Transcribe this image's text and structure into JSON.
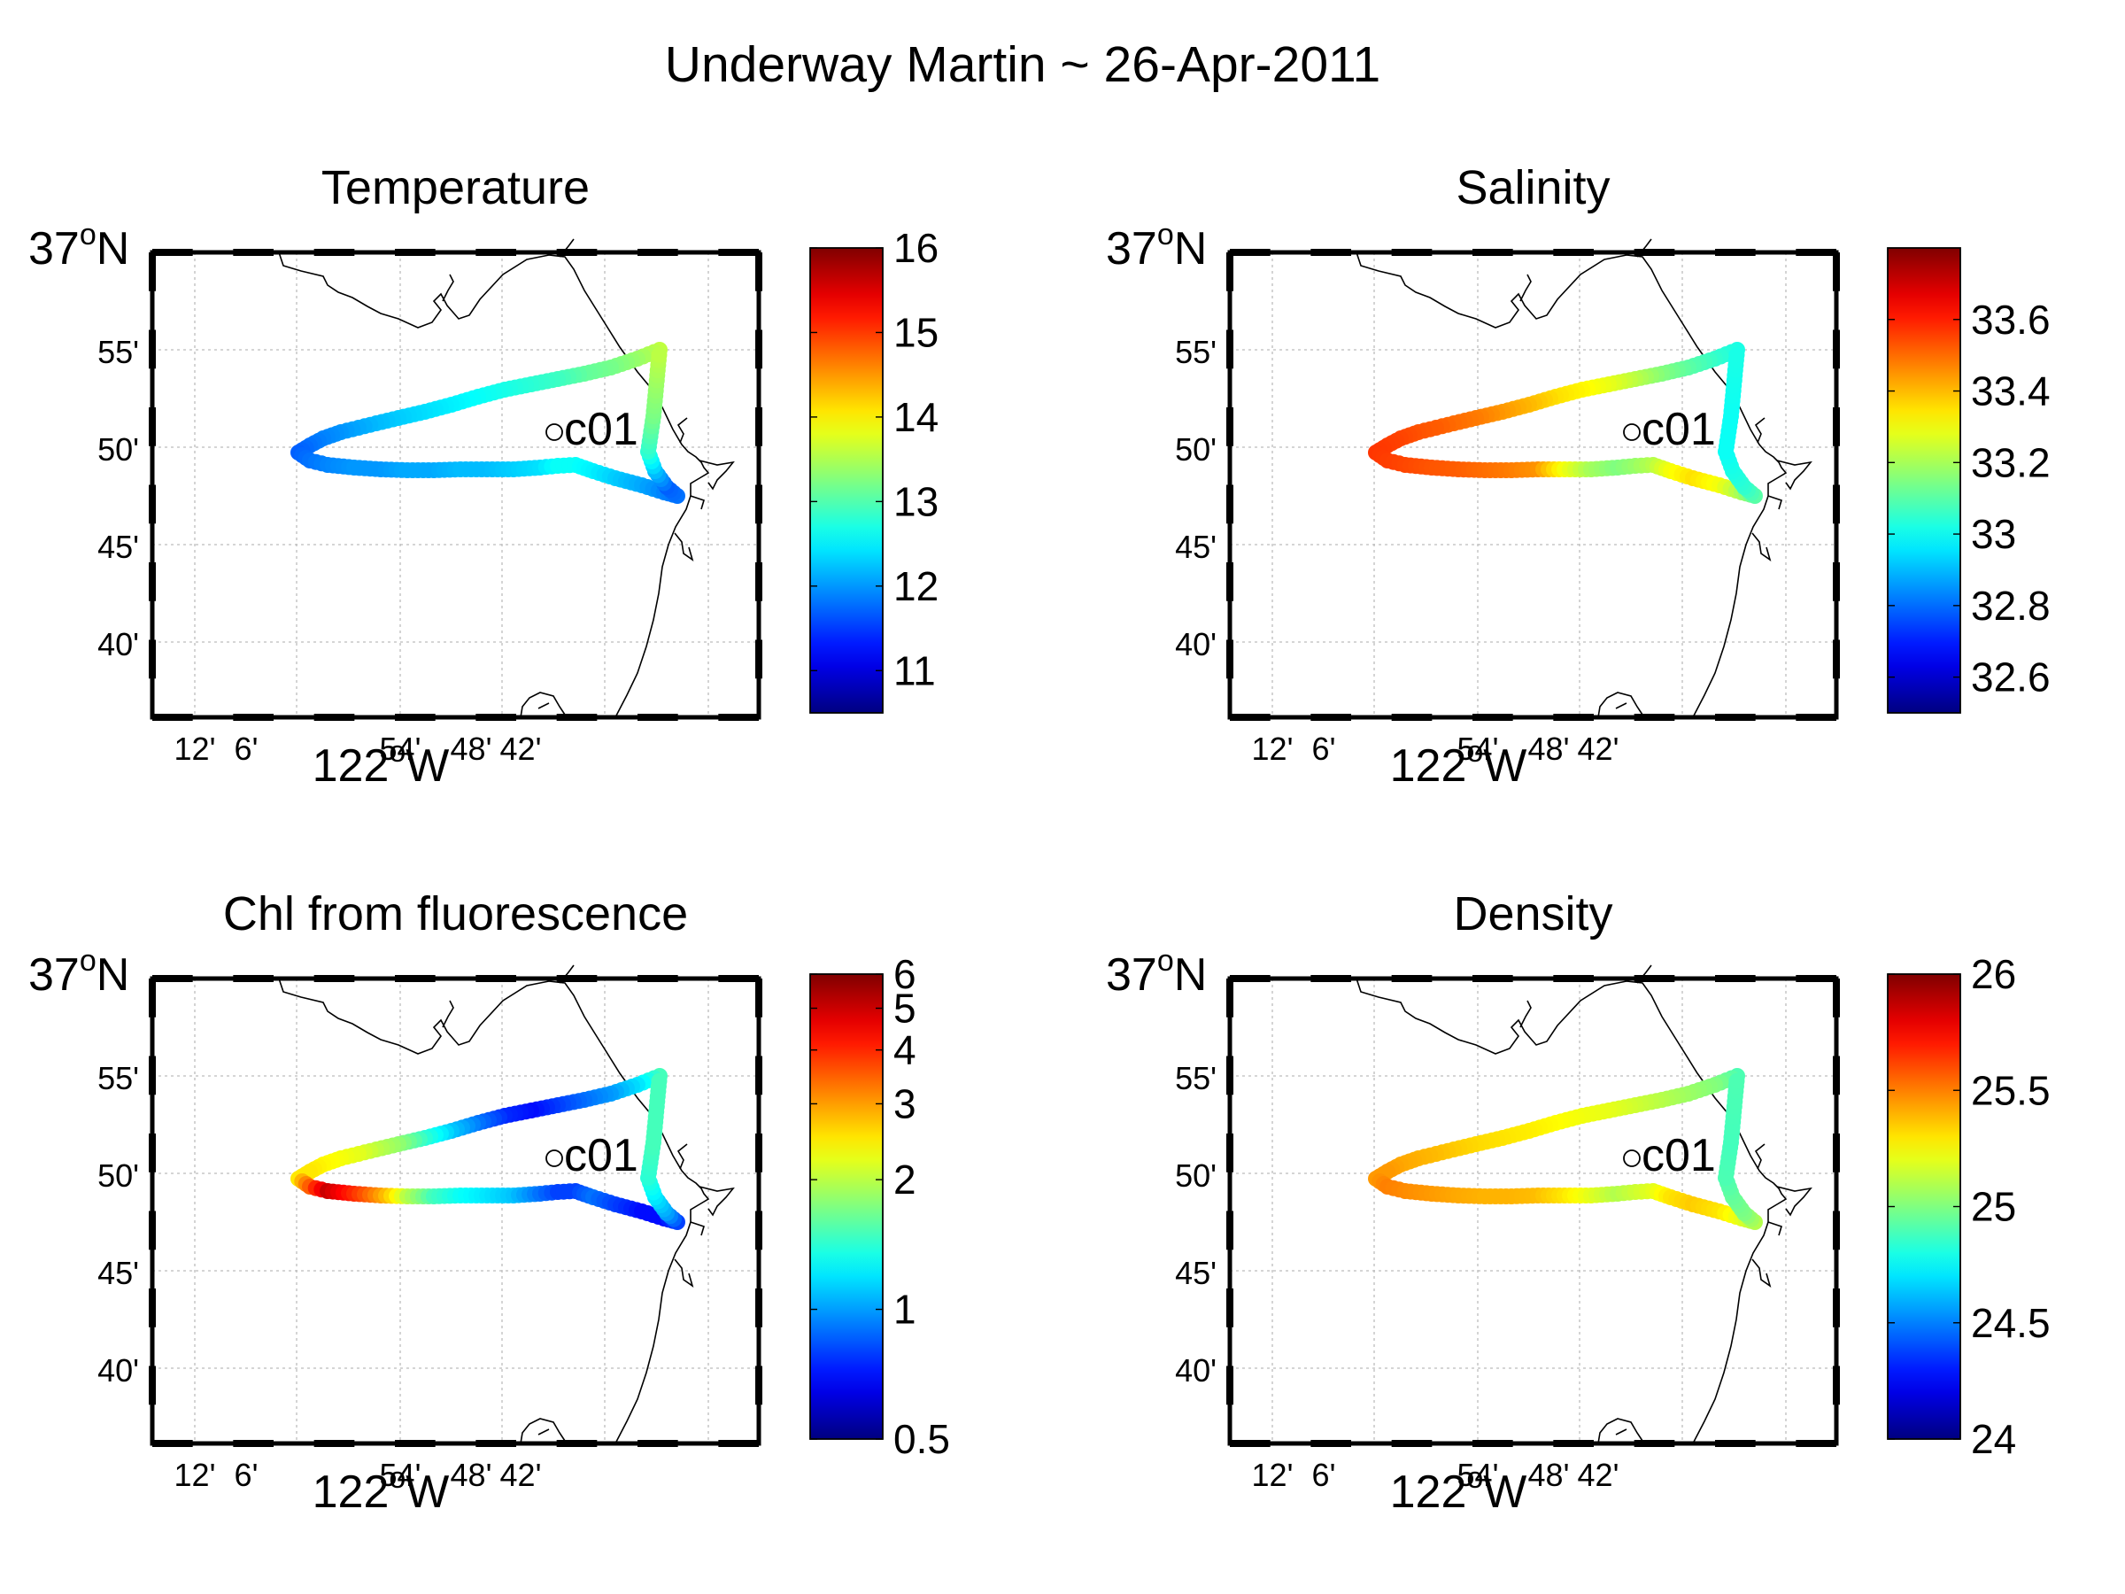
{
  "title": "Underway Martin ~ 26-Apr-2011",
  "map_labels": {
    "lat_main": "37°N",
    "lon_main": "122°W",
    "station": "c01",
    "lat_ticks": [
      "55'",
      "50'",
      "45'",
      "40'"
    ],
    "lon_ticks": [
      "12'",
      "6'",
      "54'",
      "48'",
      "42'"
    ]
  },
  "chart_data": [
    {
      "type": "scatter",
      "title": "Temperature",
      "colorbar": {
        "ticks": [
          "11",
          "12",
          "13",
          "14",
          "15",
          "16"
        ],
        "tick_values": [
          11,
          12,
          13,
          14,
          15,
          16
        ],
        "range": [
          10.5,
          16
        ]
      },
      "track_values": [
        13.6,
        13.4,
        13.2,
        13.1,
        12.9,
        12.8,
        12.7,
        12.6,
        12.5,
        12.4,
        12.3,
        12.2,
        12.1,
        12.0,
        11.9,
        11.8,
        11.7,
        11.8,
        11.9,
        12.0,
        12.0,
        12.1,
        12.1,
        12.2,
        12.2,
        12.3,
        12.4,
        12.6,
        12.6,
        12.5,
        12.3,
        12.1,
        11.9,
        11.8,
        11.7,
        12.2,
        12.8,
        13.2,
        13.6
      ]
    },
    {
      "type": "scatter",
      "title": "Salinity",
      "colorbar": {
        "ticks": [
          "32.6",
          "32.8",
          "33",
          "33.2",
          "33.4",
          "33.6"
        ],
        "tick_values": [
          32.6,
          32.8,
          33.0,
          33.2,
          33.4,
          33.6
        ],
        "range": [
          32.5,
          33.8
        ]
      },
      "track_values": [
        33.02,
        33.05,
        33.1,
        33.15,
        33.22,
        33.28,
        33.32,
        33.35,
        33.4,
        33.44,
        33.48,
        33.5,
        33.52,
        33.53,
        33.55,
        33.56,
        33.57,
        33.56,
        33.55,
        33.53,
        33.52,
        33.5,
        33.48,
        33.45,
        33.3,
        33.2,
        33.15,
        33.18,
        33.22,
        33.3,
        33.35,
        33.3,
        33.2,
        33.1,
        33.05,
        33.02,
        33.0,
        33.0,
        33.02
      ]
    },
    {
      "type": "scatter",
      "title": "Chl from fluorescence",
      "colorbar": {
        "ticks": [
          "0.5",
          "1",
          "2",
          "3",
          "4",
          "5",
          "6"
        ],
        "tick_values": [
          0.5,
          1,
          2,
          3,
          4,
          5,
          6
        ],
        "range": [
          0.5,
          6
        ],
        "scale": "log"
      },
      "track_values": [
        1.5,
        1.2,
        1.0,
        0.9,
        0.8,
        0.7,
        0.75,
        0.9,
        1.1,
        1.4,
        1.8,
        2.0,
        2.2,
        2.3,
        2.4,
        2.5,
        2.5,
        3.5,
        5.0,
        4.0,
        3.0,
        2.0,
        1.5,
        1.3,
        1.2,
        1.1,
        0.9,
        0.8,
        0.8,
        0.9,
        0.8,
        0.7,
        0.7,
        0.8,
        1.0,
        1.2,
        1.4,
        1.5,
        1.5
      ]
    },
    {
      "type": "scatter",
      "title": "Density",
      "colorbar": {
        "ticks": [
          "24",
          "24.5",
          "25",
          "25.5",
          "26"
        ],
        "tick_values": [
          24,
          24.5,
          25,
          25.5,
          26
        ],
        "range": [
          24,
          26
        ]
      },
      "track_values": [
        24.9,
        25.0,
        25.05,
        25.1,
        25.15,
        25.2,
        25.22,
        25.25,
        25.28,
        25.3,
        25.32,
        25.35,
        25.38,
        25.4,
        25.42,
        25.45,
        25.45,
        25.5,
        25.48,
        25.45,
        25.42,
        25.4,
        25.4,
        25.38,
        25.3,
        25.2,
        25.1,
        25.15,
        25.2,
        25.3,
        25.35,
        25.3,
        25.2,
        25.1,
        25.0,
        24.95,
        24.9,
        24.88,
        24.9
      ]
    }
  ]
}
